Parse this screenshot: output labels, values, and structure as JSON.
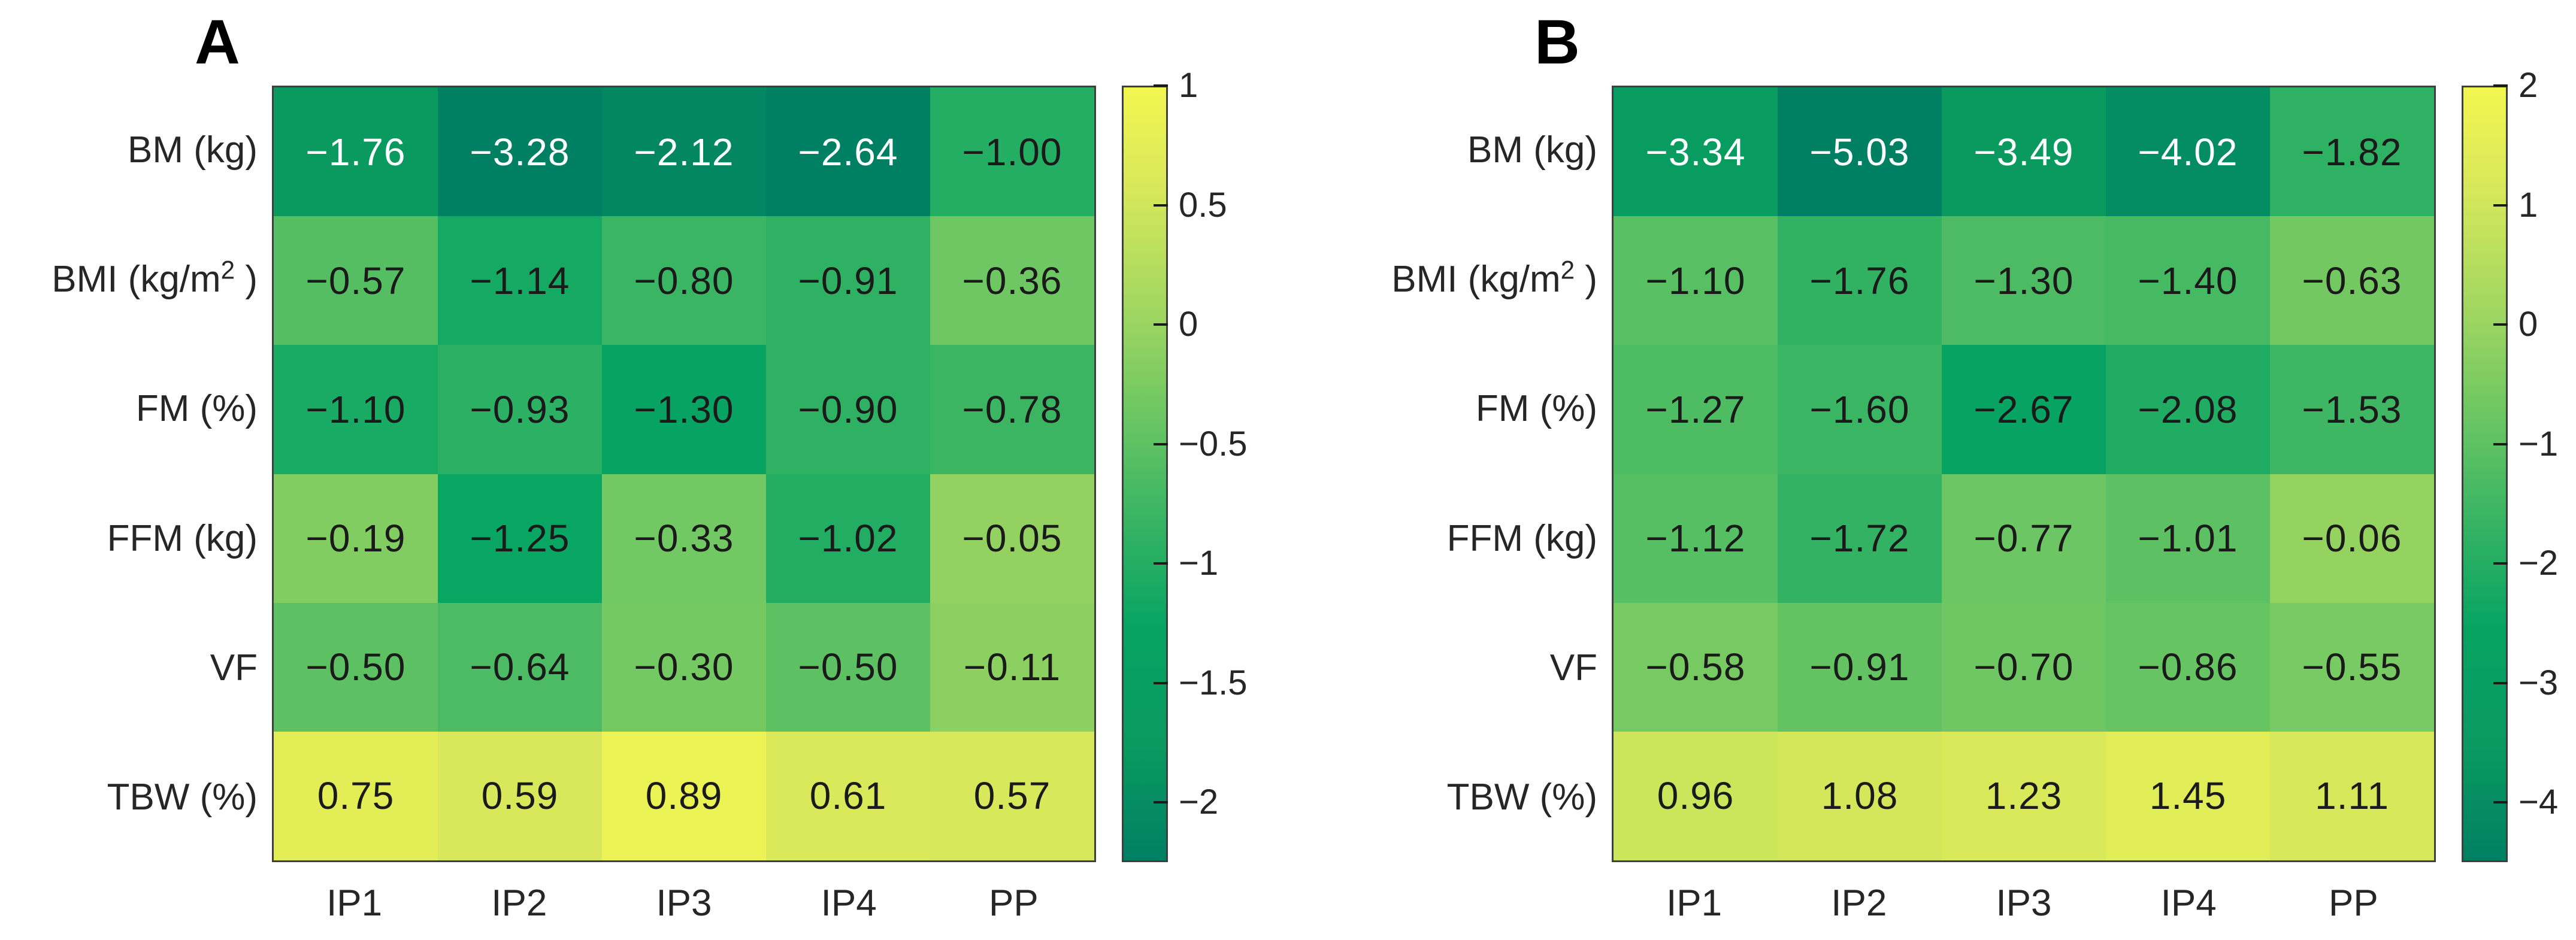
{
  "figure": {
    "background_color": "#ffffff",
    "label_color": "#262626",
    "cell_text_dark": "#1a1a1a",
    "cell_text_light": "#ffffff",
    "axes_border_color": "#3f3f3f"
  },
  "colormap": {
    "description": "green-to-yellow gradient shared by both heatmaps and colorbars",
    "stops": [
      {
        "t": 0.0,
        "color": "#008063"
      },
      {
        "t": 0.15,
        "color": "#0A9A60"
      },
      {
        "t": 0.3,
        "color": "#06A463"
      },
      {
        "t": 0.45,
        "color": "#3BB563"
      },
      {
        "t": 0.55,
        "color": "#62C363"
      },
      {
        "t": 0.7,
        "color": "#9CD561"
      },
      {
        "t": 0.87,
        "color": "#D8E85A"
      },
      {
        "t": 1.0,
        "color": "#F2F650"
      }
    ],
    "white_text_threshold": 0.2
  },
  "chart_data": [
    {
      "type": "heatmap",
      "title": "A",
      "row_labels": [
        "BM (kg)",
        "BMI (kg/m² )",
        "FM (%)",
        "FFM (kg)",
        "VF",
        "TBW (%)"
      ],
      "col_labels": [
        "IP1",
        "IP2",
        "IP3",
        "IP4",
        "PP"
      ],
      "values": [
        [
          -1.76,
          -3.28,
          -2.12,
          -2.64,
          -1.0
        ],
        [
          -0.57,
          -1.14,
          -0.8,
          -0.91,
          -0.36
        ],
        [
          -1.1,
          -0.93,
          -1.3,
          -0.9,
          -0.78
        ],
        [
          -0.19,
          -1.25,
          -0.33,
          -1.02,
          -0.05
        ],
        [
          -0.5,
          -0.64,
          -0.3,
          -0.5,
          -0.11
        ],
        [
          0.75,
          0.59,
          0.89,
          0.61,
          0.57
        ]
      ],
      "clim": [
        -2.25,
        1
      ],
      "colorbar_ticks": [
        {
          "value": 1,
          "label": "1"
        },
        {
          "value": 0.5,
          "label": "0.5"
        },
        {
          "value": 0,
          "label": "0"
        },
        {
          "value": -0.5,
          "label": "−0.5"
        },
        {
          "value": -1,
          "label": "−1"
        },
        {
          "value": -1.5,
          "label": "−1.5"
        },
        {
          "value": -2,
          "label": "−2"
        }
      ]
    },
    {
      "type": "heatmap",
      "title": "B",
      "row_labels": [
        "BM (kg)",
        "BMI (kg/m² )",
        "FM (%)",
        "FFM (kg)",
        "VF",
        "TBW (%)"
      ],
      "col_labels": [
        "IP1",
        "IP2",
        "IP3",
        "IP4",
        "PP"
      ],
      "values": [
        [
          -3.34,
          -5.03,
          -3.49,
          -4.02,
          -1.82
        ],
        [
          -1.1,
          -1.76,
          -1.3,
          -1.4,
          -0.63
        ],
        [
          -1.27,
          -1.6,
          -2.67,
          -2.08,
          -1.53
        ],
        [
          -1.12,
          -1.72,
          -0.77,
          -1.01,
          -0.06
        ],
        [
          -0.58,
          -0.91,
          -0.7,
          -0.86,
          -0.55
        ],
        [
          0.96,
          1.08,
          1.23,
          1.45,
          1.11
        ]
      ],
      "clim": [
        -4.5,
        2
      ],
      "colorbar_ticks": [
        {
          "value": 2,
          "label": "2"
        },
        {
          "value": 1,
          "label": "1"
        },
        {
          "value": 0,
          "label": "0"
        },
        {
          "value": -1,
          "label": "−1"
        },
        {
          "value": -2,
          "label": "−2"
        },
        {
          "value": -3,
          "label": "−3"
        },
        {
          "value": -4,
          "label": "−4"
        }
      ]
    }
  ]
}
